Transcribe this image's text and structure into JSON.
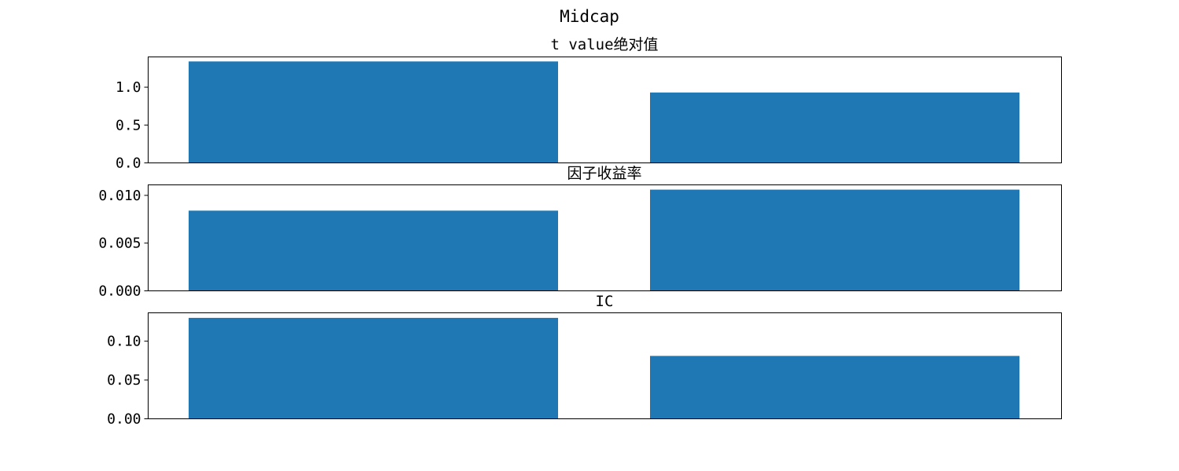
{
  "chart_data": {
    "type": "bar",
    "title": "Midcap",
    "bar_color": "#1f77b4",
    "subplots": [
      {
        "title": "t value绝对值",
        "categories": [
          "",
          ""
        ],
        "values": [
          1.34,
          0.93
        ],
        "ylim": [
          0,
          1.4
        ],
        "yticks": [
          0.0,
          0.5,
          1.0
        ],
        "ytick_labels": [
          "0.0",
          "0.5",
          "1.0"
        ],
        "xlabel": "",
        "ylabel": ""
      },
      {
        "title": "因子收益率",
        "categories": [
          "",
          ""
        ],
        "values": [
          0.0084,
          0.0106
        ],
        "ylim": [
          0,
          0.0111
        ],
        "yticks": [
          0.0,
          0.005,
          0.01
        ],
        "ytick_labels": [
          "0.000",
          "0.005",
          "0.010"
        ],
        "xlabel": "",
        "ylabel": ""
      },
      {
        "title": "IC",
        "categories": [
          "",
          ""
        ],
        "values": [
          0.13,
          0.081
        ],
        "ylim": [
          0,
          0.1365
        ],
        "yticks": [
          0.0,
          0.05,
          0.1
        ],
        "ytick_labels": [
          "0.00",
          "0.05",
          "0.10"
        ],
        "xlabel": "",
        "ylabel": ""
      }
    ]
  }
}
